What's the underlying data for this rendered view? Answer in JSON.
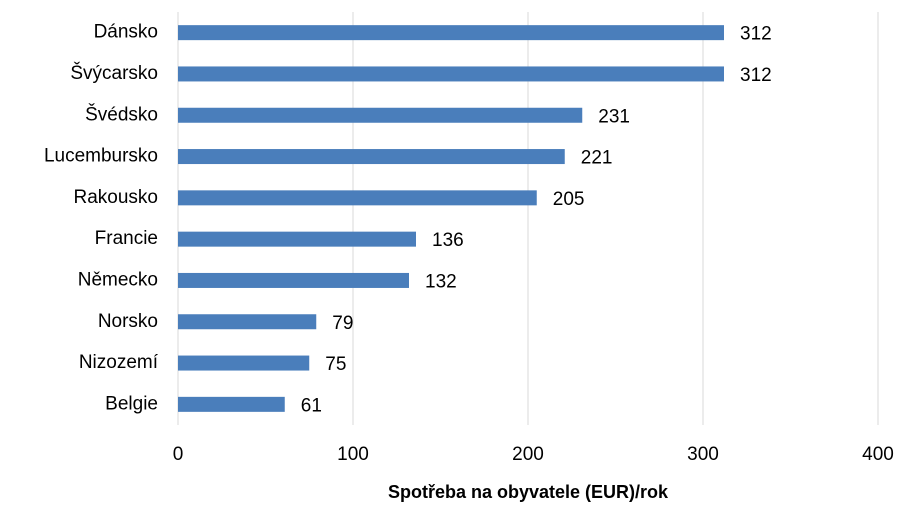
{
  "chart_data": {
    "type": "bar",
    "orientation": "horizontal",
    "xlabel": "Spotřeba na obyvatele (EUR)/rok",
    "categories": [
      "Dánsko",
      "Švýcarsko",
      "Švédsko",
      "Lucembursko",
      "Rakousko",
      "Francie",
      "Německo",
      "Norsko",
      "Nizozemí",
      "Belgie"
    ],
    "values": [
      312,
      312,
      231,
      221,
      205,
      136,
      132,
      79,
      75,
      61
    ],
    "color": "#4a7ebb",
    "xlim": [
      0,
      400
    ],
    "xticks": [
      0,
      100,
      200,
      300,
      400
    ],
    "grid": true
  }
}
